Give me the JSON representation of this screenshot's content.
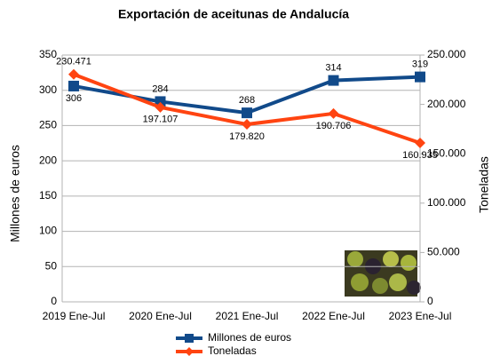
{
  "chart_data": {
    "type": "line",
    "title": "Exportación de aceitunas de Andalucía",
    "y_label": "Millones de euros",
    "y2_label": "Toneladas",
    "categories": [
      "2019 Ene-Jul",
      "2020 Ene-Jul",
      "2021 Ene-Jul",
      "2022 Ene-Jul",
      "2023 Ene-Jul"
    ],
    "series": [
      {
        "name": "Millones de euros",
        "color": "#114a8a",
        "marker": "square",
        "values": [
          306,
          284,
          268,
          314,
          319
        ]
      },
      {
        "name": "Toneladas",
        "color": "#ff4411",
        "marker": "diamond",
        "axis": "y2",
        "values": [
          230471,
          197107,
          179820,
          190706,
          160935
        ],
        "value_labels": [
          "230.471",
          "197.107",
          "179.820",
          "190.706",
          "160.935"
        ]
      }
    ],
    "ylim": [
      0,
      350
    ],
    "yticks": [
      0,
      50,
      100,
      150,
      200,
      250,
      300,
      350
    ],
    "y2lim": [
      0,
      250000
    ],
    "y2ticks": [
      0,
      {
        "value": 50000,
        "label": "50.000"
      },
      {
        "value": 100000,
        "label": "100.000"
      },
      {
        "value": 150000,
        "label": "150.000"
      },
      {
        "value": 200000,
        "label": "200.000"
      },
      {
        "value": 250000,
        "label": "250.000"
      }
    ],
    "grid": true,
    "legend": "bottom"
  }
}
